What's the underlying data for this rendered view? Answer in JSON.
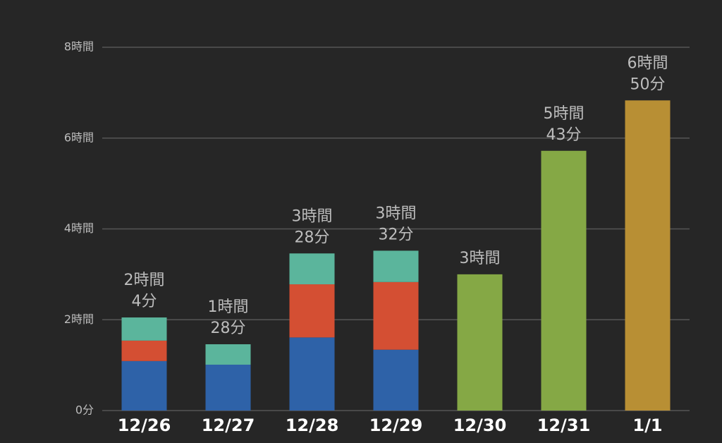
{
  "chart_data": {
    "type": "stacked_bar",
    "categories": [
      "12/26",
      "12/27",
      "12/28",
      "12/29",
      "12/30",
      "12/31",
      "1/1"
    ],
    "series": [
      {
        "color": "#2e62a8",
        "values": [
          1.09,
          1.01,
          1.61,
          1.34,
          null,
          null,
          null
        ]
      },
      {
        "color": "#d44f33",
        "values": [
          0.45,
          null,
          1.17,
          1.49,
          null,
          null,
          null
        ]
      },
      {
        "color": "#5bb59c",
        "values": [
          0.51,
          0.45,
          0.68,
          0.69,
          null,
          null,
          null
        ]
      },
      {
        "color": "#85a845",
        "values": [
          null,
          null,
          null,
          null,
          3.0,
          5.72,
          null
        ]
      },
      {
        "color": "#b88f34",
        "values": [
          null,
          null,
          null,
          null,
          null,
          null,
          6.83
        ]
      }
    ],
    "stack_labels": [
      [
        "2時間",
        "4分"
      ],
      [
        "1時間",
        "28分"
      ],
      [
        "3時間",
        "28分"
      ],
      [
        "3時間",
        "32分"
      ],
      [
        "3時間"
      ],
      [
        "5時間",
        "43分"
      ],
      [
        "6時間",
        "50分"
      ]
    ],
    "ylim": [
      0,
      8
    ],
    "yticks": [
      {
        "value": 0,
        "label": "0分"
      },
      {
        "value": 2,
        "label": "2時間"
      },
      {
        "value": 4,
        "label": "4時間"
      },
      {
        "value": 6,
        "label": "6時間"
      },
      {
        "value": 8,
        "label": "8時間"
      }
    ],
    "grid": true
  }
}
